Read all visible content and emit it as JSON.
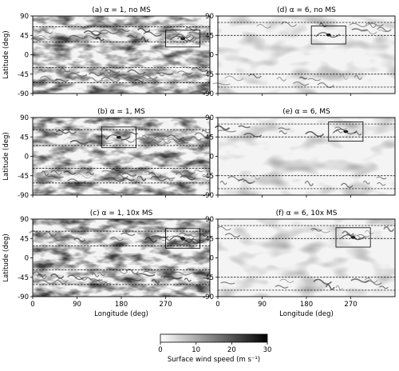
{
  "figure": {
    "panels": [
      {
        "id": "a",
        "title": "(a) α = 1, no MS",
        "alpha": 1,
        "case": "no MS",
        "dashed_latitudes": [
          65,
          30,
          -30,
          -65
        ],
        "highlight_box": {
          "lon": [
            270,
            340
          ],
          "lat": [
            18,
            57
          ]
        },
        "background": "dense"
      },
      {
        "id": "d",
        "title": "(d) α = 6, no MS",
        "alpha": 6,
        "case": "no MS",
        "dashed_latitudes": [
          75,
          45,
          -45,
          -75
        ],
        "highlight_box": {
          "lon": [
            190,
            260
          ],
          "lat": [
            25,
            67
          ]
        },
        "background": "sparse"
      },
      {
        "id": "b",
        "title": "(b) α = 1, MS",
        "alpha": 1,
        "case": "MS",
        "dashed_latitudes": [
          62,
          25,
          -28,
          -62
        ],
        "highlight_box": {
          "lon": [
            140,
            210
          ],
          "lat": [
            20,
            68
          ]
        },
        "background": "dense"
      },
      {
        "id": "e",
        "title": "(e) α = 6, MS",
        "alpha": 6,
        "case": "MS",
        "dashed_latitudes": [
          75,
          45,
          -45,
          -75
        ],
        "highlight_box": {
          "lon": [
            225,
            295
          ],
          "lat": [
            35,
            80
          ]
        },
        "background": "sparse"
      },
      {
        "id": "c",
        "title": "(c) α = 1, 10x MS",
        "alpha": 1,
        "case": "10x MS",
        "dashed_latitudes": [
          62,
          28,
          -28,
          -62
        ],
        "highlight_box": {
          "lon": [
            270,
            340
          ],
          "lat": [
            22,
            68
          ]
        },
        "background": "dense"
      },
      {
        "id": "f",
        "title": "(f) α = 6, 10x MS",
        "alpha": 6,
        "case": "10x MS",
        "dashed_latitudes": [
          75,
          45,
          -45,
          -75
        ],
        "highlight_box": {
          "lon": [
            240,
            310
          ],
          "lat": [
            25,
            70
          ]
        },
        "background": "sparse"
      }
    ],
    "y_axis": {
      "label": "Latitude (deg)",
      "ticks": [
        "90",
        "45",
        "0",
        "-45",
        "-90"
      ],
      "range": [
        -90,
        90
      ]
    },
    "x_axis": {
      "label": "Longitude (deg)",
      "ticks": [
        "0",
        "90",
        "180",
        "270"
      ],
      "range": [
        0,
        360
      ]
    },
    "colorbar": {
      "label": "Surface wind speed (m s⁻¹)",
      "ticks": [
        "0",
        "10",
        "20",
        "30"
      ],
      "range": [
        0,
        30
      ],
      "colors": [
        "#ffffff",
        "#000000"
      ]
    }
  }
}
